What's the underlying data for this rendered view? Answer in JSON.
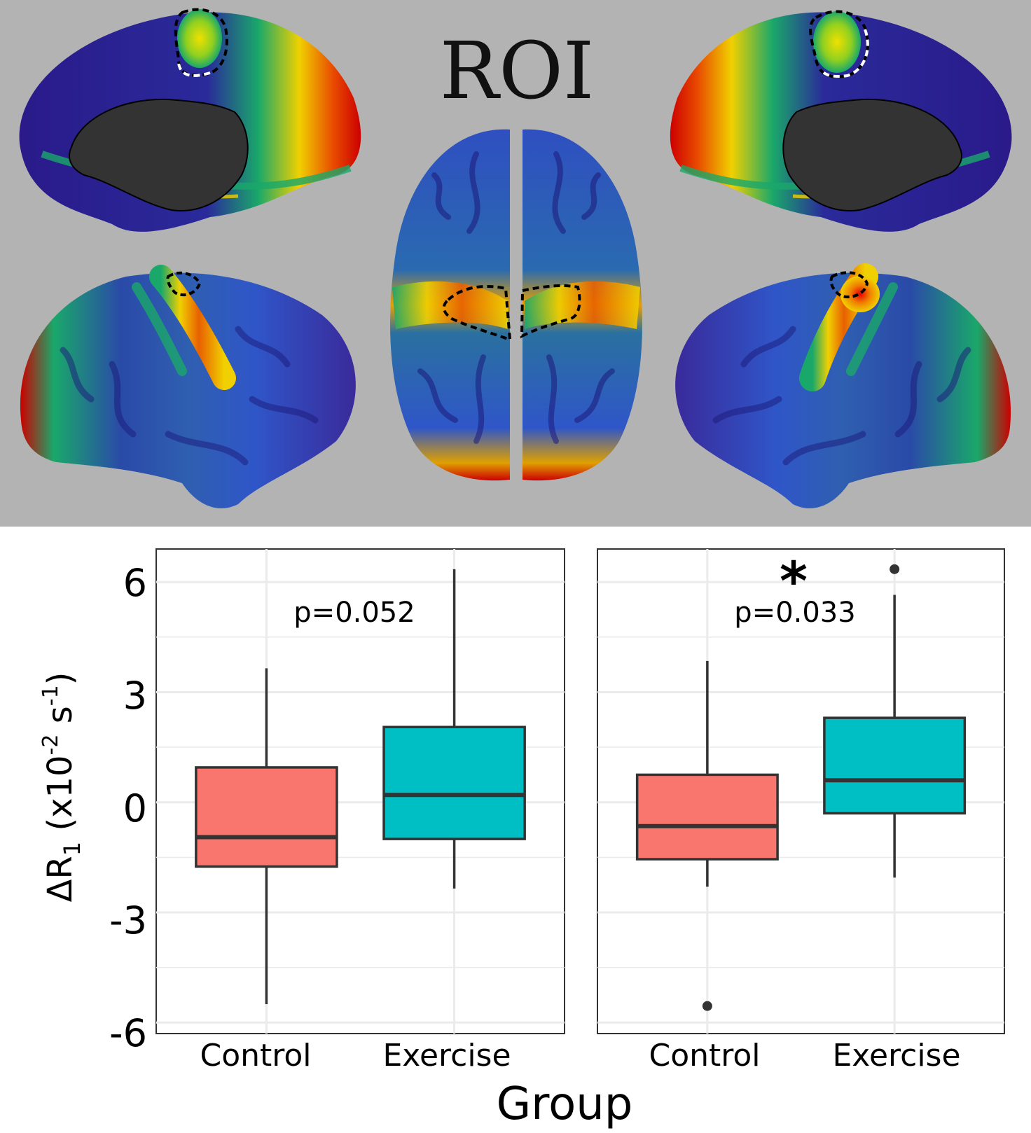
{
  "roi_panel": {
    "title": "ROI",
    "views": [
      {
        "id": "left-medial",
        "hemisphere": "left",
        "surface": "medial"
      },
      {
        "id": "right-medial",
        "hemisphere": "right",
        "surface": "medial"
      },
      {
        "id": "dorsal",
        "hemisphere": "both",
        "surface": "superior"
      },
      {
        "id": "left-lateral",
        "hemisphere": "left",
        "surface": "lateral"
      },
      {
        "id": "right-lateral",
        "hemisphere": "right",
        "surface": "lateral"
      }
    ],
    "colors": {
      "background": "#b3b3b3",
      "low": "#2a0a7a",
      "mid_low": "#2f56c8",
      "mid": "#1aa86a",
      "mid_high": "#f0e000",
      "high": "#cc0000",
      "medial_wall": "#333333"
    }
  },
  "chart_data": [
    {
      "type": "box",
      "title": "p=0.052",
      "significance": "",
      "categories": [
        "Control",
        "Exercise"
      ],
      "ylim": [
        -6.3,
        6.9
      ],
      "yticks": [
        -6,
        -3,
        0,
        3,
        6
      ],
      "grid": true,
      "colors": [
        "#f8766d",
        "#00bfc4"
      ],
      "boxes": [
        {
          "category": "Control",
          "whisker_low": -5.5,
          "q1": -1.75,
          "median": -0.95,
          "q3": 0.95,
          "whisker_high": 3.65,
          "outliers": []
        },
        {
          "category": "Exercise",
          "whisker_low": -2.35,
          "q1": -1.0,
          "median": 0.2,
          "q3": 2.05,
          "whisker_high": 6.35,
          "outliers": []
        }
      ]
    },
    {
      "type": "box",
      "title": "p=0.033",
      "significance": "*",
      "categories": [
        "Control",
        "Exercise"
      ],
      "ylim": [
        -6.3,
        6.9
      ],
      "yticks": [
        -6,
        -3,
        0,
        3,
        6
      ],
      "grid": true,
      "colors": [
        "#f8766d",
        "#00bfc4"
      ],
      "boxes": [
        {
          "category": "Control",
          "whisker_low": -2.3,
          "q1": -1.55,
          "median": -0.65,
          "q3": 0.75,
          "whisker_high": 3.85,
          "outliers": [
            -5.55
          ]
        },
        {
          "category": "Exercise",
          "whisker_low": -2.05,
          "q1": -0.3,
          "median": 0.6,
          "q3": 2.3,
          "whisker_high": 5.65,
          "outliers": [
            6.35
          ]
        }
      ]
    }
  ],
  "axes": {
    "ylabel_main": "ΔR",
    "ylabel_sub": "1",
    "ylabel_units_a": " (x10",
    "ylabel_exp_a": "-2",
    "ylabel_units_b": " s",
    "ylabel_exp_b": "-1",
    "ylabel_close": ")",
    "xlabel": "Group",
    "ytick_labels": [
      "-6",
      "-3",
      "0",
      "3",
      "6"
    ]
  }
}
